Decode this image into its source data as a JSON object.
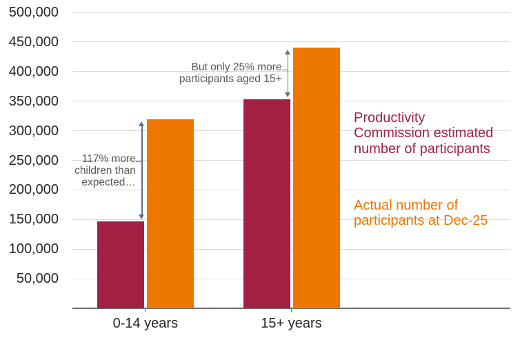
{
  "chart_data": {
    "type": "bar",
    "title": "",
    "xlabel": "",
    "ylabel": "",
    "categories": [
      "0-14 years",
      "15+ years"
    ],
    "series": [
      {
        "name": "Productivity Commission estimated number of participants",
        "legend_lines": [
          "Productivity",
          "Commission estimated",
          "number of participants"
        ],
        "color": "#A22043",
        "values": [
          147000,
          353000
        ]
      },
      {
        "name": "Actual number of participants at Dec-25",
        "legend_lines": [
          "Actual number of",
          "participants at Dec-25"
        ],
        "color": "#ED7700",
        "values": [
          319000,
          441000
        ]
      }
    ],
    "ylim": [
      0,
      500000
    ],
    "ytick_step": 50000,
    "ytick_labels": [
      "50,000",
      "100,000",
      "150,000",
      "200,000",
      "250,000",
      "300,000",
      "350,000",
      "400,000",
      "450,000",
      "500,000"
    ],
    "grid": true,
    "legend_position": "right-inside",
    "annotations": [
      {
        "category_index": 0,
        "lines": [
          "117% more",
          "children than",
          "expected…"
        ]
      },
      {
        "category_index": 1,
        "lines": [
          "But only 25% more",
          "participants aged 15+"
        ]
      }
    ],
    "colors": {
      "gridline": "#D9D9D9",
      "axis_line": "#6E6E6E",
      "axis_text": "#262626",
      "annotation_text": "#595959",
      "arrow": "#5E7082"
    }
  }
}
